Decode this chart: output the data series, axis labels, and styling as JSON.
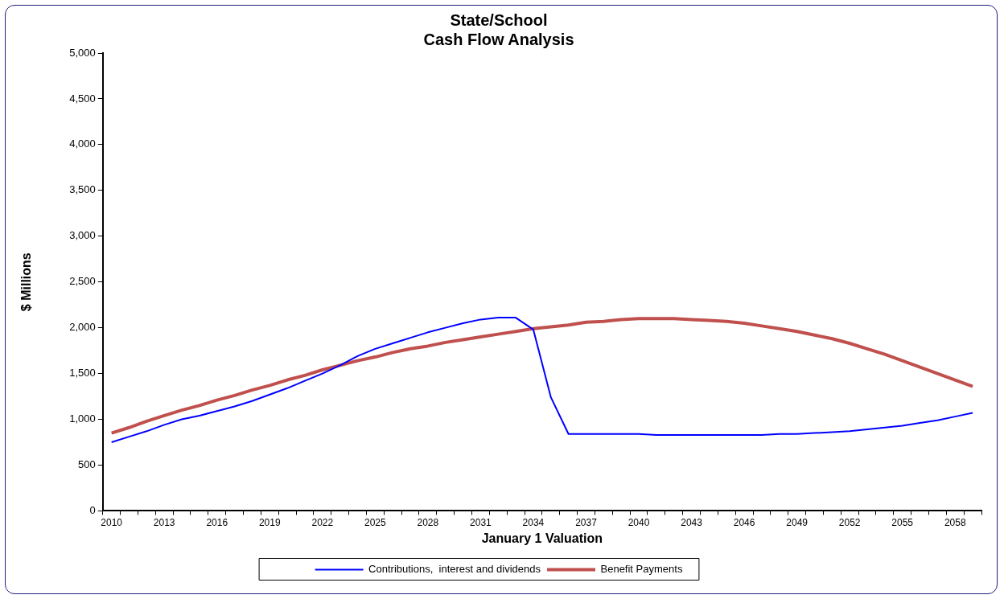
{
  "chart_data": {
    "type": "line",
    "title": [
      "State/School",
      "Cash Flow Analysis"
    ],
    "xlabel": "January 1 Valuation",
    "ylabel": "$ Millions",
    "categories": [
      "2010",
      null,
      null,
      "2013",
      null,
      null,
      "2016",
      null,
      null,
      "2019",
      null,
      null,
      "2022",
      null,
      null,
      "2025",
      null,
      null,
      "2028",
      null,
      null,
      "2031",
      null,
      null,
      "2034",
      null,
      null,
      "2037",
      null,
      null,
      "2040",
      null,
      null,
      "2043",
      null,
      null,
      "2046",
      null,
      null,
      "2049",
      null,
      null,
      "2052",
      null,
      null,
      "2055",
      null,
      null,
      "2058",
      null
    ],
    "series": [
      {
        "name": "Contributions,  interest and dividends",
        "color": "#0000ff",
        "values": [
          750,
          810,
          870,
          940,
          1000,
          1040,
          1090,
          1140,
          1200,
          1270,
          1340,
          1420,
          1500,
          1590,
          1690,
          1770,
          1830,
          1890,
          1950,
          2000,
          2050,
          2090,
          2110,
          2110,
          1980,
          1240,
          840,
          840,
          840,
          840,
          840,
          830,
          830,
          830,
          830,
          830,
          830,
          830,
          840,
          840,
          850,
          860,
          870,
          890,
          910,
          930,
          960,
          990,
          1030,
          1070
        ]
      },
      {
        "name": "Benefit Payments",
        "color": "#c0504d",
        "values": [
          850,
          910,
          980,
          1040,
          1100,
          1150,
          1210,
          1260,
          1320,
          1370,
          1430,
          1480,
          1540,
          1590,
          1640,
          1680,
          1730,
          1770,
          1800,
          1840,
          1870,
          1900,
          1930,
          1960,
          1990,
          2010,
          2030,
          2060,
          2070,
          2090,
          2100,
          2100,
          2100,
          2090,
          2080,
          2070,
          2050,
          2020,
          1990,
          1960,
          1920,
          1880,
          1830,
          1770,
          1710,
          1640,
          1570,
          1500,
          1430,
          1360
        ]
      }
    ],
    "ylim": [
      0,
      5000
    ],
    "yticks": [
      0,
      500,
      {
        "value": 1000,
        "label": "1,000"
      },
      {
        "value": 1500,
        "label": "1,500"
      },
      {
        "value": 2000,
        "label": "2,000"
      },
      {
        "value": 2500,
        "label": "2,500"
      },
      {
        "value": 3000,
        "label": "3,000"
      },
      {
        "value": 3500,
        "label": "3,500"
      },
      {
        "value": 4000,
        "label": "4,000"
      },
      {
        "value": 4500,
        "label": "4,500"
      },
      {
        "value": 5000,
        "label": "5,000"
      }
    ],
    "grid": false,
    "legend": "bottom",
    "marker": "none",
    "line_style": "solid"
  }
}
